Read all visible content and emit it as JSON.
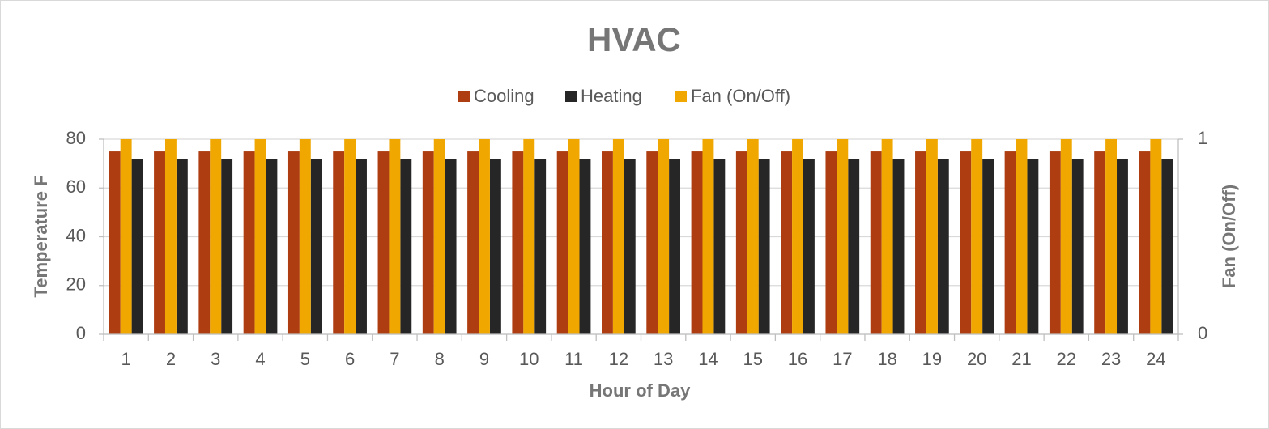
{
  "chart_data": {
    "type": "bar",
    "title": "HVAC",
    "categories": [
      "1",
      "2",
      "3",
      "4",
      "5",
      "6",
      "7",
      "8",
      "9",
      "10",
      "11",
      "12",
      "13",
      "14",
      "15",
      "16",
      "17",
      "18",
      "19",
      "20",
      "21",
      "22",
      "23",
      "24"
    ],
    "series": [
      {
        "name": "Cooling",
        "color": "#AE3E12",
        "values": [
          75,
          75,
          75,
          75,
          75,
          75,
          75,
          75,
          75,
          75,
          75,
          75,
          75,
          75,
          75,
          75,
          75,
          75,
          75,
          75,
          75,
          75,
          75,
          75
        ]
      },
      {
        "name": "Heating",
        "color": "#262626",
        "values": [
          72,
          72,
          72,
          72,
          72,
          72,
          72,
          72,
          72,
          72,
          72,
          72,
          72,
          72,
          72,
          72,
          72,
          72,
          72,
          72,
          72,
          72,
          72,
          72
        ]
      },
      {
        "name": "Fan (On/Off)",
        "color": "#F0A800",
        "axis": "y2",
        "values": [
          1,
          1,
          1,
          1,
          1,
          1,
          1,
          1,
          1,
          1,
          1,
          1,
          1,
          1,
          1,
          1,
          1,
          1,
          1,
          1,
          1,
          1,
          1,
          1
        ]
      }
    ],
    "x_label": "Hour of Day",
    "y_label": "Temperature F",
    "y2_label": "Fan (On/Off)",
    "ylim": [
      0,
      80
    ],
    "yticks": [
      0,
      20,
      40,
      60,
      80
    ],
    "y2lim": [
      0,
      1
    ],
    "y2ticks": [
      0,
      1
    ],
    "grid": true,
    "legend": "top"
  }
}
